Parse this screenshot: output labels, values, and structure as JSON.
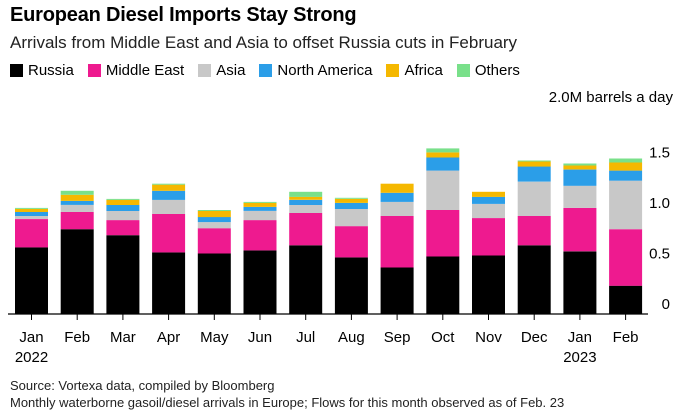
{
  "chart_data": {
    "type": "bar",
    "stacked": true,
    "title": "European Diesel Imports Stay Strong",
    "subtitle": "Arrivals from Middle East and Asia to offset Russia cuts in February",
    "ylabel": "2.0M barrels a day",
    "ylim": [
      0,
      2.0
    ],
    "yticks": [
      "0",
      "0.5",
      "1.0",
      "1.5"
    ],
    "ytick_values": [
      0,
      0.5,
      1.0,
      1.5
    ],
    "grid": false,
    "legend_position": "top-left",
    "categories": [
      "Jan",
      "Feb",
      "Mar",
      "Apr",
      "May",
      "Jun",
      "Jul",
      "Aug",
      "Sep",
      "Oct",
      "Nov",
      "Dec",
      "Jan",
      "Feb"
    ],
    "year_labels": [
      "2022",
      "",
      "",
      "",
      "",
      "",
      "",
      "",
      "",
      "",
      "",
      "",
      "2023",
      ""
    ],
    "series": [
      {
        "name": "Russia",
        "color": "#000000",
        "values": [
          0.66,
          0.84,
          0.78,
          0.61,
          0.6,
          0.63,
          0.68,
          0.56,
          0.46,
          0.57,
          0.58,
          0.68,
          0.62,
          0.28
        ]
      },
      {
        "name": "Middle East",
        "color": "#ee1a8f",
        "values": [
          0.28,
          0.17,
          0.15,
          0.38,
          0.25,
          0.3,
          0.32,
          0.31,
          0.51,
          0.46,
          0.37,
          0.29,
          0.43,
          0.56
        ]
      },
      {
        "name": "Asia",
        "color": "#c8c8c8",
        "values": [
          0.03,
          0.07,
          0.09,
          0.14,
          0.06,
          0.09,
          0.08,
          0.17,
          0.14,
          0.39,
          0.14,
          0.34,
          0.22,
          0.48
        ]
      },
      {
        "name": "North America",
        "color": "#2b9ee8",
        "values": [
          0.04,
          0.04,
          0.06,
          0.09,
          0.05,
          0.04,
          0.05,
          0.06,
          0.09,
          0.13,
          0.07,
          0.15,
          0.16,
          0.1
        ]
      },
      {
        "name": "Africa",
        "color": "#f5b800",
        "values": [
          0.03,
          0.06,
          0.05,
          0.06,
          0.06,
          0.04,
          0.03,
          0.04,
          0.09,
          0.05,
          0.05,
          0.05,
          0.04,
          0.08
        ]
      },
      {
        "name": "Others",
        "color": "#79e08a",
        "values": [
          0.01,
          0.04,
          0.01,
          0.01,
          0.01,
          0.01,
          0.05,
          0.01,
          0.0,
          0.04,
          0.0,
          0.01,
          0.02,
          0.04
        ]
      }
    ]
  },
  "footer": {
    "source": "Source: Vortexa data, compiled by Bloomberg",
    "note": "Monthly waterborne gasoil/diesel arrivals in Europe; Flows for this month observed as of Feb. 23"
  }
}
